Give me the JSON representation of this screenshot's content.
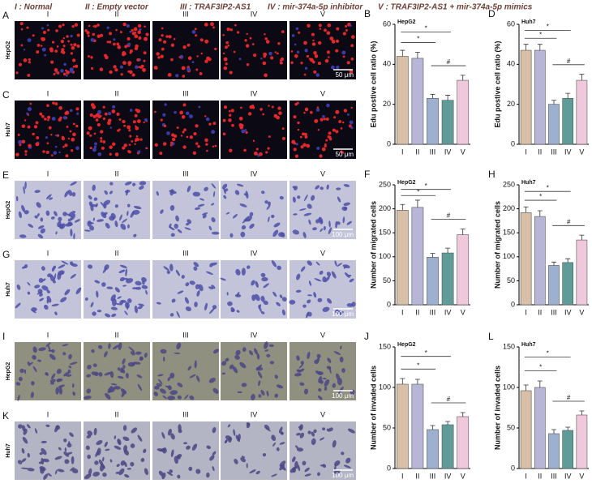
{
  "header": [
    "I : Normal",
    "II : Empty vector",
    "III : TRAF3IP2-AS1",
    "IV : mir-374a-5p inhibitor",
    "V : TRAF3IP2-AS1 + mir-374a-5p mimics"
  ],
  "image_rows": [
    {
      "label": "A",
      "cell_line": "HepG2",
      "columns": [
        "I",
        "II",
        "III",
        "IV",
        "V"
      ],
      "scale_bar": "50 μm"
    },
    {
      "label": "C",
      "cell_line": "Huh7",
      "columns": [
        "I",
        "II",
        "III",
        "IV",
        "V"
      ],
      "scale_bar": "50 μm"
    },
    {
      "label": "E",
      "cell_line": "HepG2",
      "columns": [
        "I",
        "II",
        "III",
        "IV",
        "V"
      ],
      "scale_bar": "100 μm"
    },
    {
      "label": "G",
      "cell_line": "Huh7",
      "columns": [
        "I",
        "II",
        "III",
        "IV",
        "V"
      ],
      "scale_bar": "100 μm"
    },
    {
      "label": "I",
      "cell_line": "HepG2",
      "columns": [
        "I",
        "II",
        "III",
        "IV",
        "V"
      ],
      "scale_bar": "100 μm"
    },
    {
      "label": "K",
      "cell_line": "Huh7",
      "columns": [
        "I",
        "II",
        "III",
        "IV",
        "V"
      ],
      "scale_bar": "100 μm"
    }
  ],
  "chart_data": [
    {
      "type": "bar",
      "label": "B",
      "title": "HepG2",
      "y_label": "Edu postive cell ratio (%)",
      "categories": [
        "I",
        "II",
        "III",
        "IV",
        "V"
      ],
      "values": [
        44,
        43,
        23,
        22,
        32
      ],
      "errors": [
        3,
        3,
        2,
        2.5,
        2.5
      ],
      "colors": [
        "#d8c0a8",
        "#b8b6d6",
        "#9eb0cf",
        "#5f9b97",
        "#f0c8dc"
      ],
      "ylim": [
        0,
        60
      ],
      "yticks": [
        0,
        20,
        40,
        60
      ],
      "annotations": [
        "*",
        "*",
        "#"
      ]
    },
    {
      "type": "bar",
      "label": "D",
      "title": "Huh7",
      "y_label": "Edu postive cell ratio (%)",
      "categories": [
        "I",
        "II",
        "III",
        "IV",
        "V"
      ],
      "values": [
        47,
        47,
        20,
        23,
        32
      ],
      "errors": [
        3,
        3,
        2,
        2.5,
        3
      ],
      "colors": [
        "#d8c0a8",
        "#b8b6d6",
        "#9eb0cf",
        "#5f9b97",
        "#f0c8dc"
      ],
      "ylim": [
        0,
        60
      ],
      "yticks": [
        0,
        20,
        40,
        60
      ],
      "annotations": [
        "*",
        "*",
        "#"
      ]
    },
    {
      "type": "bar",
      "label": "F",
      "title": "HepG2",
      "y_label": "Number of migrated cells",
      "categories": [
        "I",
        "II",
        "III",
        "IV",
        "V"
      ],
      "values": [
        197,
        203,
        99,
        108,
        146
      ],
      "errors": [
        12,
        15,
        8,
        10,
        12
      ],
      "colors": [
        "#d8c0a8",
        "#b8b6d6",
        "#9eb0cf",
        "#5f9b97",
        "#f0c8dc"
      ],
      "ylim": [
        0,
        250
      ],
      "yticks": [
        0,
        50,
        100,
        150,
        200,
        250
      ],
      "annotations": [
        "*",
        "*",
        "#"
      ]
    },
    {
      "type": "bar",
      "label": "H",
      "title": "Huh7",
      "y_label": "Number of migrated cells",
      "categories": [
        "I",
        "II",
        "III",
        "IV",
        "V"
      ],
      "values": [
        192,
        184,
        82,
        88,
        135
      ],
      "errors": [
        12,
        12,
        7,
        8,
        10
      ],
      "colors": [
        "#d8c0a8",
        "#b8b6d6",
        "#9eb0cf",
        "#5f9b97",
        "#f0c8dc"
      ],
      "ylim": [
        0,
        250
      ],
      "yticks": [
        0,
        50,
        100,
        150,
        200,
        250
      ],
      "annotations": [
        "*",
        "*",
        "#"
      ]
    },
    {
      "type": "bar",
      "label": "J",
      "title": "HepG2",
      "y_label": "Number of invaded cells",
      "categories": [
        "I",
        "II",
        "III",
        "IV",
        "V"
      ],
      "values": [
        104,
        104,
        48,
        54,
        64
      ],
      "errors": [
        7,
        6,
        5,
        4,
        5
      ],
      "colors": [
        "#d8c0a8",
        "#b8b6d6",
        "#9eb0cf",
        "#5f9b97",
        "#f0c8dc"
      ],
      "ylim": [
        0,
        150
      ],
      "yticks": [
        0,
        50,
        100,
        150
      ],
      "annotations": [
        "*",
        "*",
        "#"
      ]
    },
    {
      "type": "bar",
      "label": "L",
      "title": "Huh7",
      "y_label": "Number of invaded cells",
      "categories": [
        "I",
        "II",
        "III",
        "IV",
        "V"
      ],
      "values": [
        96,
        100,
        43,
        47,
        66
      ],
      "errors": [
        7,
        8,
        5,
        4,
        5
      ],
      "colors": [
        "#d8c0a8",
        "#b8b6d6",
        "#9eb0cf",
        "#5f9b97",
        "#f0c8dc"
      ],
      "ylim": [
        0,
        150
      ],
      "yticks": [
        0,
        50,
        100,
        150
      ],
      "annotations": [
        "*",
        "*",
        "#"
      ]
    }
  ]
}
